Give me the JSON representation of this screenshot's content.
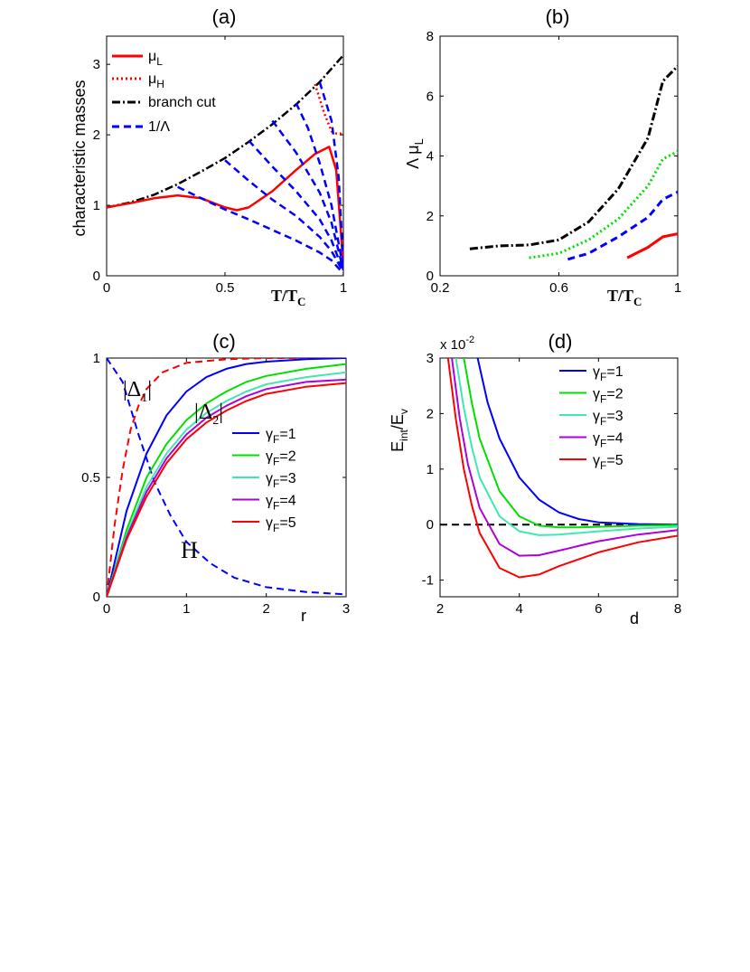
{
  "chart_data": [
    {
      "id": "a",
      "type": "line",
      "title": "(a)",
      "ylabel": "characteristic masses",
      "xlabel": "T/T",
      "xlabel_sub": "C",
      "xlim": [
        0,
        1
      ],
      "ylim": [
        0,
        3.4
      ],
      "xticks": [
        0,
        0.5,
        1
      ],
      "xtick_labels": [
        "0",
        "0.5",
        "1"
      ],
      "yticks": [
        0,
        1,
        2,
        3
      ],
      "ytick_labels": [
        "0",
        "1",
        "2",
        "3"
      ],
      "legend": [
        {
          "label": "μ",
          "sub": "L",
          "color": "#ff0000",
          "style": "solid"
        },
        {
          "label": "μ",
          "sub": "H",
          "color": "#ff0000",
          "style": "dotted"
        },
        {
          "label": "branch cut",
          "sub": "",
          "color": "#000000",
          "style": "dashdot"
        },
        {
          "label": "1/Λ",
          "sub": "",
          "color": "#0000ff",
          "style": "dashed"
        }
      ],
      "series": [
        {
          "name": "branch cut",
          "color": "#000000",
          "style": "dashdot",
          "x": [
            0,
            0.1,
            0.2,
            0.3,
            0.4,
            0.5,
            0.6,
            0.7,
            0.8,
            0.9,
            1.0
          ],
          "y": [
            0.97,
            1.04,
            1.15,
            1.3,
            1.48,
            1.67,
            1.9,
            2.15,
            2.43,
            2.75,
            3.13
          ]
        },
        {
          "name": "μL",
          "color": "#ff0000",
          "style": "solid",
          "x": [
            0,
            0.1,
            0.2,
            0.3,
            0.4,
            0.5,
            0.55,
            0.6,
            0.7,
            0.8,
            0.88,
            0.94,
            0.97,
            0.99,
            1.0
          ],
          "y": [
            0.97,
            1.03,
            1.1,
            1.14,
            1.1,
            0.97,
            0.93,
            0.97,
            1.2,
            1.5,
            1.73,
            1.83,
            1.5,
            0.6,
            0.1
          ]
        },
        {
          "name": "μH",
          "color": "#ff0000",
          "style": "dotted",
          "x": [
            0.88,
            0.92,
            0.95,
            0.97,
            0.99,
            1.0
          ],
          "y": [
            2.72,
            2.3,
            2.05,
            2.02,
            2.02,
            2.05
          ]
        },
        {
          "name": "1/Λ (0.3)",
          "color": "#0000ff",
          "style": "dashed",
          "x": [
            0.3,
            0.4,
            0.5,
            0.6,
            0.7,
            0.8,
            0.9,
            0.95,
            1.0
          ],
          "y": [
            1.26,
            1.1,
            0.94,
            0.8,
            0.65,
            0.5,
            0.33,
            0.22,
            0.03
          ]
        },
        {
          "name": "1/Λ (0.5)",
          "color": "#0000ff",
          "style": "dashed",
          "x": [
            0.5,
            0.6,
            0.7,
            0.8,
            0.9,
            0.95,
            1.0
          ],
          "y": [
            1.64,
            1.35,
            1.08,
            0.85,
            0.55,
            0.35,
            0.05
          ]
        },
        {
          "name": "1/Λ (0.6)",
          "color": "#0000ff",
          "style": "dashed",
          "x": [
            0.6,
            0.7,
            0.8,
            0.9,
            0.95,
            1.0
          ],
          "y": [
            1.92,
            1.55,
            1.2,
            0.8,
            0.5,
            0.06
          ]
        },
        {
          "name": "1/Λ (0.7)",
          "color": "#0000ff",
          "style": "dashed",
          "x": [
            0.7,
            0.8,
            0.9,
            0.95,
            1.0
          ],
          "y": [
            2.2,
            1.75,
            1.18,
            0.75,
            0.08
          ]
        },
        {
          "name": "1/Λ (0.8)",
          "color": "#0000ff",
          "style": "dashed",
          "x": [
            0.8,
            0.85,
            0.9,
            0.95,
            1.0
          ],
          "y": [
            2.45,
            2.1,
            1.6,
            1.0,
            0.1
          ]
        },
        {
          "name": "1/Λ (0.9)",
          "color": "#0000ff",
          "style": "dashed",
          "x": [
            0.9,
            0.95,
            0.98,
            1.0
          ],
          "y": [
            2.75,
            2.2,
            1.4,
            0.15
          ]
        }
      ]
    },
    {
      "id": "b",
      "type": "line",
      "title": "(b)",
      "ylabel": "Λ μ",
      "ylabel_sub": "L",
      "xlabel": "T/T",
      "xlabel_sub": "C",
      "xlim": [
        0.2,
        1
      ],
      "ylim": [
        0,
        8
      ],
      "xticks": [
        0.2,
        0.6,
        1
      ],
      "xtick_labels": [
        "0.2",
        "0.6",
        "1"
      ],
      "yticks": [
        0,
        2,
        4,
        6,
        8
      ],
      "ytick_labels": [
        "0",
        "2",
        "4",
        "6",
        "8"
      ],
      "series": [
        {
          "name": "black",
          "color": "#000000",
          "style": "dashdot",
          "x": [
            0.3,
            0.4,
            0.5,
            0.6,
            0.7,
            0.8,
            0.9,
            0.95,
            1.0
          ],
          "y": [
            0.9,
            1.0,
            1.03,
            1.2,
            1.8,
            2.9,
            4.6,
            6.5,
            7.0
          ]
        },
        {
          "name": "green",
          "color": "#00dd00",
          "style": "dotted",
          "x": [
            0.5,
            0.6,
            0.7,
            0.8,
            0.9,
            0.95,
            1.0
          ],
          "y": [
            0.6,
            0.75,
            1.2,
            1.9,
            3.0,
            3.9,
            4.15
          ]
        },
        {
          "name": "blue",
          "color": "#0000ff",
          "style": "dashed",
          "x": [
            0.63,
            0.7,
            0.8,
            0.9,
            0.95,
            1.0
          ],
          "y": [
            0.55,
            0.75,
            1.3,
            1.95,
            2.55,
            2.8
          ]
        },
        {
          "name": "red",
          "color": "#ff0000",
          "style": "solid",
          "x": [
            0.83,
            0.9,
            0.95,
            1.0
          ],
          "y": [
            0.6,
            0.95,
            1.3,
            1.4
          ]
        }
      ]
    },
    {
      "id": "c",
      "type": "line",
      "title": "(c)",
      "xlabel": "r",
      "xlim": [
        0,
        3
      ],
      "ylim": [
        0,
        1
      ],
      "xticks": [
        0,
        1,
        2,
        3
      ],
      "xtick_labels": [
        "0",
        "1",
        "2",
        "3"
      ],
      "yticks": [
        0,
        0.5,
        1
      ],
      "ytick_labels": [
        "0",
        "0.5",
        "1"
      ],
      "annotations": [
        {
          "text": "|Δ",
          "sub": "1",
          "close": "|"
        },
        {
          "text": "|Δ",
          "sub": "2",
          "close": "|"
        },
        {
          "text": "H",
          "sub": "",
          "close": ""
        }
      ],
      "legend": [
        {
          "label": "γ",
          "sub": "F",
          "value": "=1",
          "color": "#0000ff"
        },
        {
          "label": "γ",
          "sub": "F",
          "value": "=2",
          "color": "#00e000"
        },
        {
          "label": "γ",
          "sub": "F",
          "value": "=3",
          "color": "#40e8b0"
        },
        {
          "label": "γ",
          "sub": "F",
          "value": "=4",
          "color": "#b000d8"
        },
        {
          "label": "γ",
          "sub": "F",
          "value": "=5",
          "color": "#ff0000"
        }
      ],
      "series": [
        {
          "name": "|Δ1|",
          "color": "#ff0000",
          "style": "dashed",
          "x": [
            0,
            0.1,
            0.2,
            0.3,
            0.4,
            0.5,
            0.7,
            1.0,
            1.5,
            2.0,
            3.0
          ],
          "y": [
            0,
            0.3,
            0.53,
            0.7,
            0.8,
            0.87,
            0.94,
            0.98,
            0.995,
            1.0,
            1.0
          ]
        },
        {
          "name": "H",
          "color": "#0000ff",
          "style": "dashed",
          "x": [
            0,
            0.2,
            0.4,
            0.6,
            0.8,
            1.0,
            1.3,
            1.6,
            2.0,
            2.5,
            3.0
          ],
          "y": [
            1.0,
            0.9,
            0.68,
            0.48,
            0.34,
            0.23,
            0.14,
            0.08,
            0.04,
            0.02,
            0.01
          ]
        },
        {
          "name": "γF=1",
          "color": "#0000ff",
          "style": "solid",
          "x": [
            0,
            0.25,
            0.5,
            0.75,
            1.0,
            1.25,
            1.5,
            1.75,
            2.0,
            2.5,
            3.0
          ],
          "y": [
            0,
            0.36,
            0.6,
            0.76,
            0.86,
            0.92,
            0.955,
            0.975,
            0.985,
            0.995,
            1.0
          ]
        },
        {
          "name": "γF=2",
          "color": "#00e000",
          "style": "solid",
          "x": [
            0,
            0.25,
            0.5,
            0.75,
            1.0,
            1.25,
            1.5,
            1.75,
            2.0,
            2.5,
            3.0
          ],
          "y": [
            0,
            0.28,
            0.5,
            0.64,
            0.74,
            0.81,
            0.86,
            0.9,
            0.925,
            0.955,
            0.975
          ]
        },
        {
          "name": "γF=3",
          "color": "#40e8b0",
          "style": "solid",
          "x": [
            0,
            0.25,
            0.5,
            0.75,
            1.0,
            1.25,
            1.5,
            1.75,
            2.0,
            2.5,
            3.0
          ],
          "y": [
            0,
            0.26,
            0.46,
            0.6,
            0.7,
            0.77,
            0.82,
            0.86,
            0.89,
            0.92,
            0.94
          ]
        },
        {
          "name": "γF=4",
          "color": "#b000d8",
          "style": "solid",
          "x": [
            0,
            0.25,
            0.5,
            0.75,
            1.0,
            1.25,
            1.5,
            1.75,
            2.0,
            2.5,
            3.0
          ],
          "y": [
            0,
            0.25,
            0.44,
            0.58,
            0.68,
            0.75,
            0.8,
            0.84,
            0.87,
            0.9,
            0.91
          ]
        },
        {
          "name": "γF=5",
          "color": "#ff0000",
          "style": "solid",
          "x": [
            0,
            0.25,
            0.5,
            0.75,
            1.0,
            1.25,
            1.5,
            1.75,
            2.0,
            2.5,
            3.0
          ],
          "y": [
            0,
            0.24,
            0.42,
            0.56,
            0.66,
            0.73,
            0.78,
            0.82,
            0.85,
            0.88,
            0.895
          ]
        }
      ]
    },
    {
      "id": "d",
      "type": "line",
      "title": "(d)",
      "ylabel": "E",
      "ylabel_sub1": "int",
      "ylabel_mid": "/E",
      "ylabel_sub2": "v",
      "xlabel": "d",
      "multiplier": "x 10",
      "multiplier_exp": "-2",
      "xlim": [
        2,
        8
      ],
      "ylim": [
        -1.3,
        3
      ],
      "xticks": [
        2,
        4,
        6,
        8
      ],
      "xtick_labels": [
        "2",
        "4",
        "6",
        "8"
      ],
      "yticks": [
        -1,
        0,
        1,
        2,
        3
      ],
      "ytick_labels": [
        "-1",
        "0",
        "1",
        "2",
        "3"
      ],
      "legend": [
        {
          "label": "γ",
          "sub": "F",
          "value": "=1",
          "color": "#0000ff"
        },
        {
          "label": "γ",
          "sub": "F",
          "value": "=2",
          "color": "#00e000"
        },
        {
          "label": "γ",
          "sub": "F",
          "value": "=3",
          "color": "#40e8b0"
        },
        {
          "label": "γ",
          "sub": "F",
          "value": "=4",
          "color": "#b000d8"
        },
        {
          "label": "γ",
          "sub": "F",
          "value": "=5",
          "color": "#ff0000"
        }
      ],
      "series": [
        {
          "name": "zero",
          "color": "#000000",
          "style": "dashed",
          "x": [
            2,
            8
          ],
          "y": [
            0,
            0
          ]
        },
        {
          "name": "γF=1",
          "color": "#0000ff",
          "style": "solid",
          "x": [
            2.95,
            3.2,
            3.5,
            4.0,
            4.5,
            5.0,
            5.5,
            6.0,
            7.0,
            8.0
          ],
          "y": [
            3.0,
            2.2,
            1.55,
            0.85,
            0.45,
            0.22,
            0.1,
            0.04,
            0.01,
            0.0
          ]
        },
        {
          "name": "γF=2",
          "color": "#00e000",
          "style": "solid",
          "x": [
            2.6,
            2.8,
            3.0,
            3.5,
            4.0,
            4.5,
            5.0,
            5.5,
            6.0,
            7.0,
            8.0
          ],
          "y": [
            3.0,
            2.2,
            1.55,
            0.6,
            0.15,
            -0.02,
            -0.05,
            -0.05,
            -0.04,
            -0.02,
            -0.01
          ]
        },
        {
          "name": "γF=3",
          "color": "#40e8b0",
          "style": "solid",
          "x": [
            2.4,
            2.6,
            2.8,
            3.0,
            3.5,
            4.0,
            4.5,
            5.0,
            6.0,
            7.0,
            8.0
          ],
          "y": [
            3.0,
            2.1,
            1.4,
            0.85,
            0.15,
            -0.12,
            -0.19,
            -0.18,
            -0.12,
            -0.07,
            -0.04
          ]
        },
        {
          "name": "γF=4",
          "color": "#b000d8",
          "style": "solid",
          "x": [
            2.3,
            2.5,
            2.7,
            3.0,
            3.5,
            4.0,
            4.5,
            5.0,
            6.0,
            7.0,
            8.0
          ],
          "y": [
            3.0,
            1.9,
            1.1,
            0.3,
            -0.35,
            -0.56,
            -0.55,
            -0.47,
            -0.3,
            -0.18,
            -0.1
          ]
        },
        {
          "name": "γF=5",
          "color": "#ff0000",
          "style": "solid",
          "x": [
            2.2,
            2.4,
            2.6,
            2.8,
            3.0,
            3.5,
            4.0,
            4.5,
            5.0,
            6.0,
            7.0,
            8.0
          ],
          "y": [
            3.0,
            1.9,
            1.0,
            0.35,
            -0.15,
            -0.78,
            -0.95,
            -0.9,
            -0.75,
            -0.5,
            -0.32,
            -0.2
          ]
        }
      ]
    }
  ]
}
